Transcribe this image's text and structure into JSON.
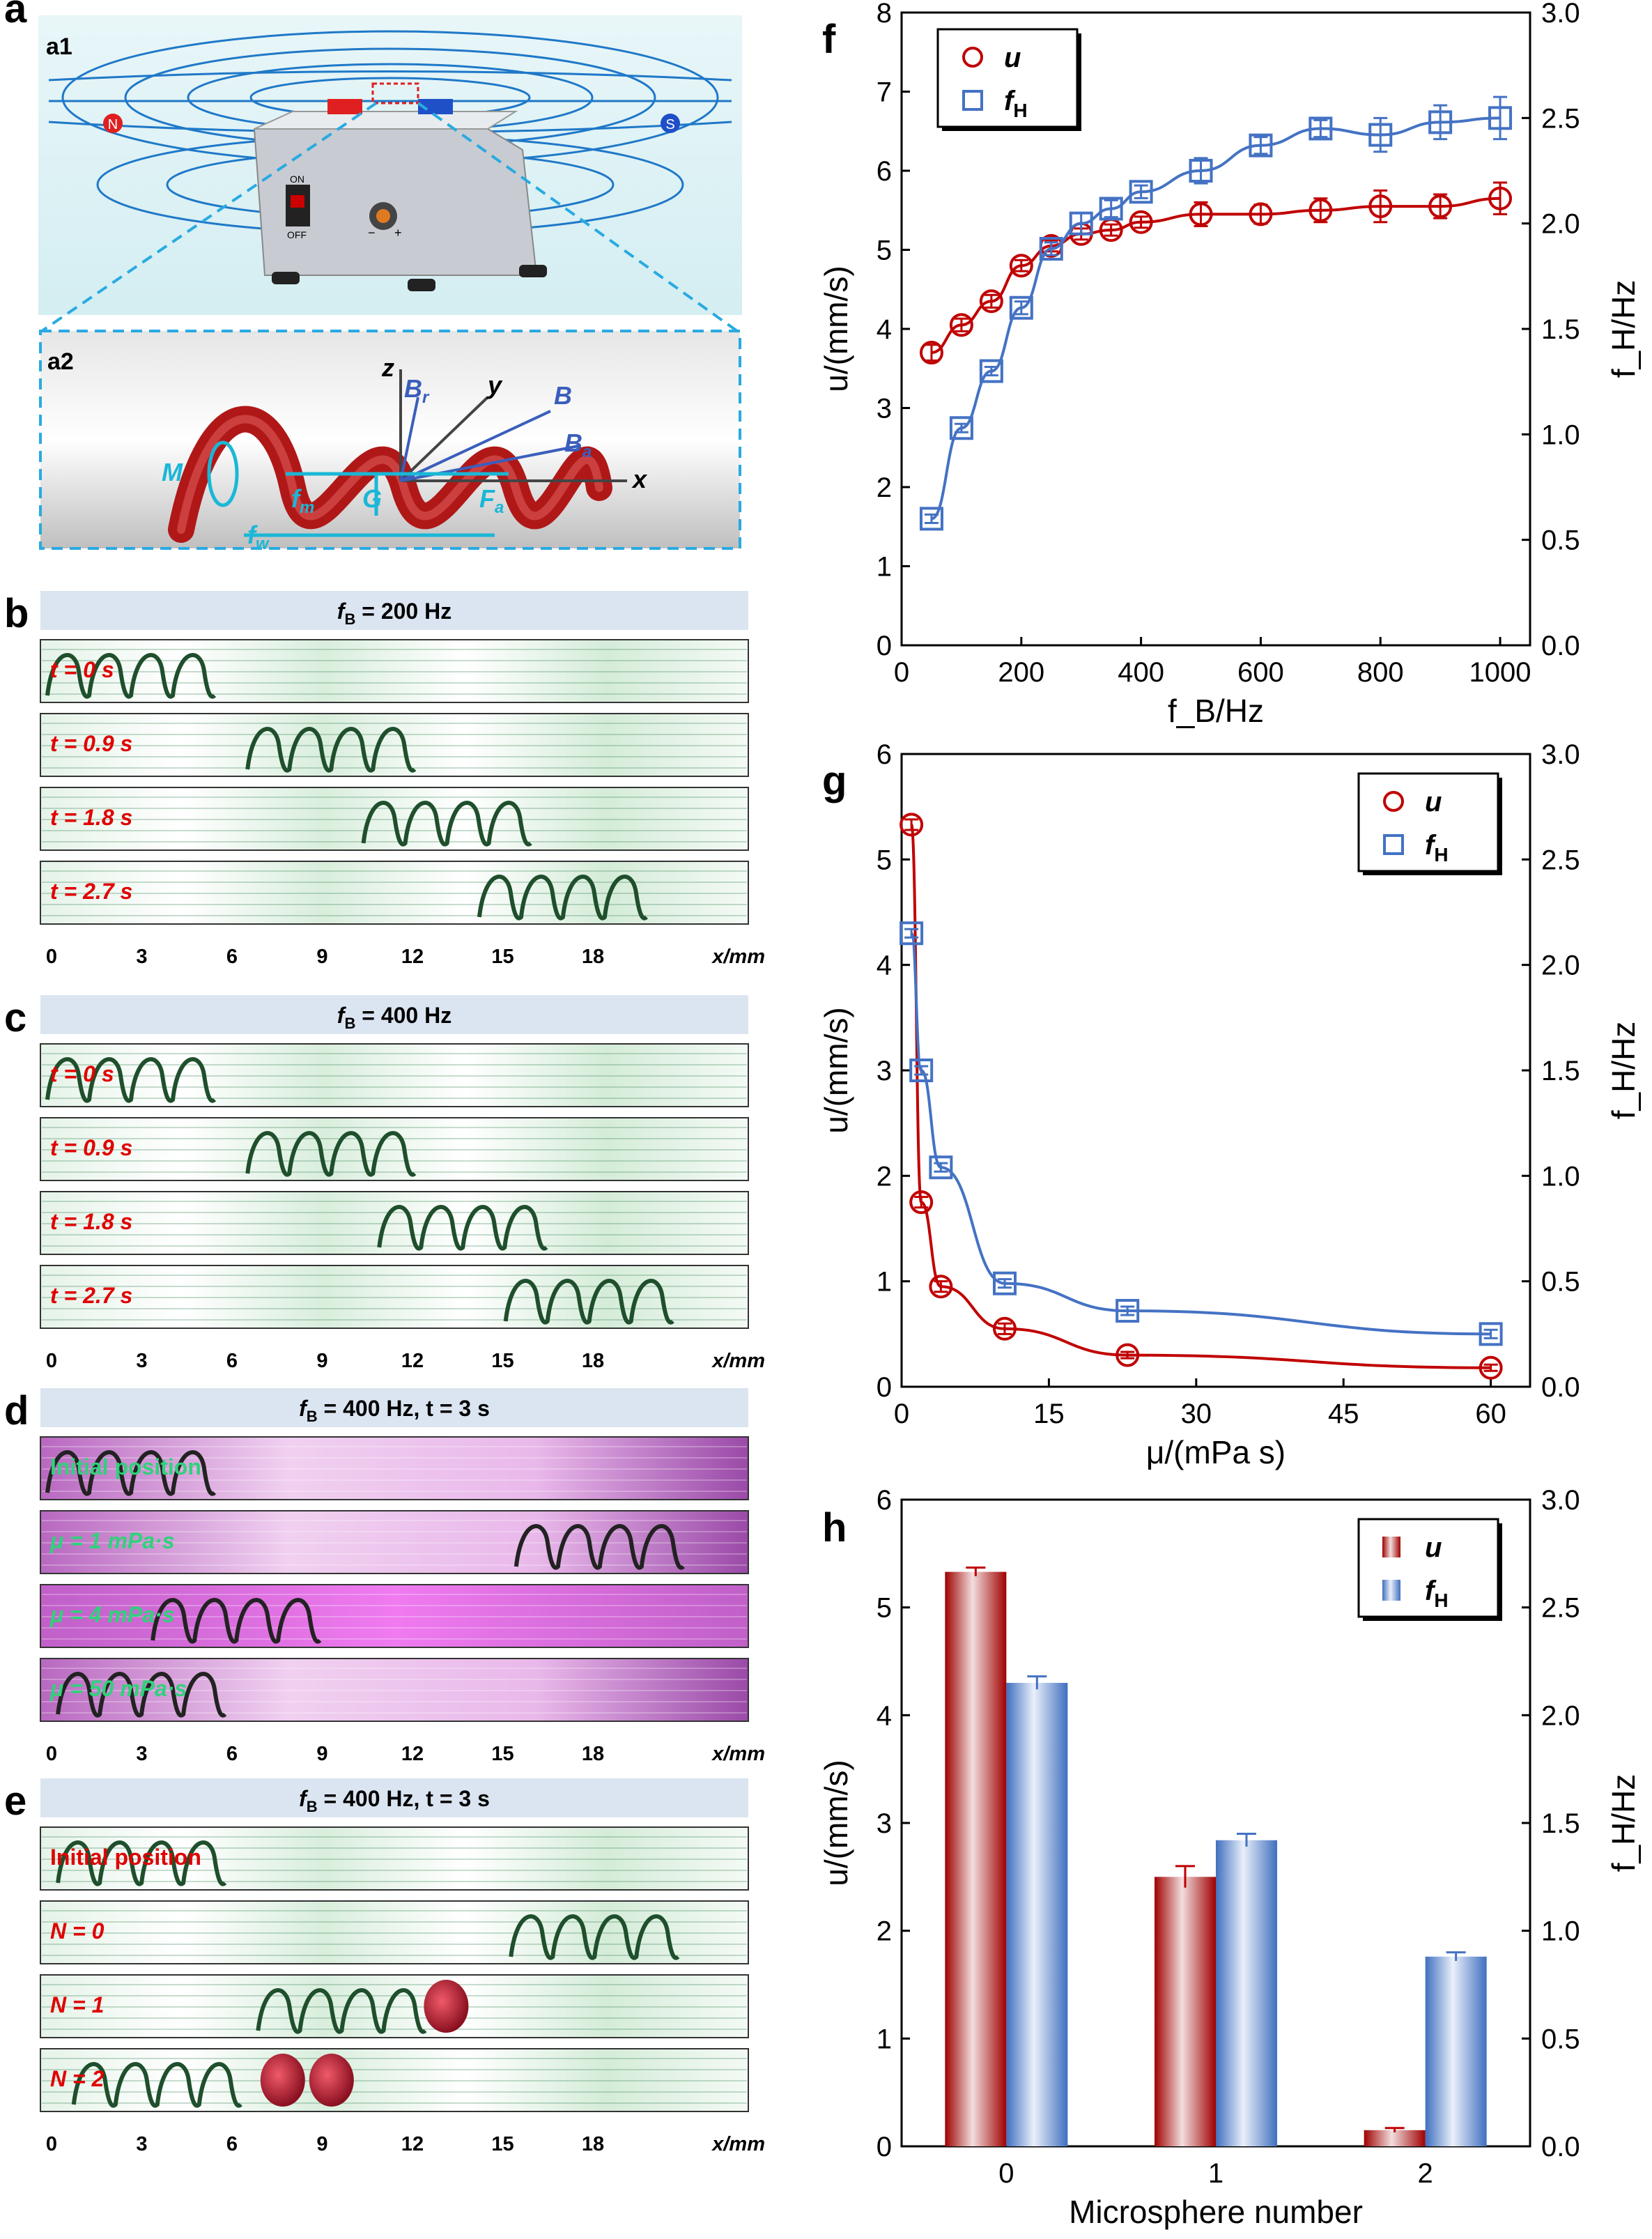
{
  "colors": {
    "red": "#c00000",
    "blue": "#4472c4",
    "strip_title_bg": "#dbe5f1",
    "pink": "#d88fd8",
    "cyan": "#1ab7d6"
  },
  "panels": {
    "a": {
      "letter": "a",
      "a1": {
        "label": "a1",
        "pole_n": "N",
        "pole_s": "S",
        "device_labels": [
          "ON",
          "OFF",
          "−",
          "+"
        ]
      },
      "a2": {
        "label": "a2",
        "axes": {
          "z": "z",
          "y": "y",
          "x": "x"
        },
        "vectors": {
          "Br": "B",
          "Br_sub": "r",
          "B": "B",
          "Ba": "B",
          "Ba_sub": "a",
          "Fa": "F",
          "Fa_sub": "a",
          "fm": "f",
          "fm_sub": "m",
          "fw": "f",
          "fw_sub": "w",
          "G": "G",
          "M": "M"
        }
      }
    },
    "b": {
      "letter": "b",
      "title": "f",
      "title_sub": "B",
      "title_rest": " = 200 Hz",
      "rows": [
        "t = 0 s",
        "t = 0.9 s",
        "t = 1.8 s",
        "t = 2.7 s"
      ],
      "ticks": [
        "0",
        "3",
        "6",
        "9",
        "12",
        "15",
        "18"
      ],
      "xlabel": "x/mm"
    },
    "c": {
      "letter": "c",
      "title": "f",
      "title_sub": "B",
      "title_rest": " = 400 Hz",
      "rows": [
        "t = 0 s",
        "t = 0.9 s",
        "t = 1.8 s",
        "t = 2.7 s"
      ],
      "ticks": [
        "0",
        "3",
        "6",
        "9",
        "12",
        "15",
        "18"
      ],
      "xlabel": "x/mm"
    },
    "d": {
      "letter": "d",
      "title": "f",
      "title_sub": "B",
      "title_rest": " = 400 Hz, t = 3 s",
      "rows": [
        "Initial position",
        "μ = 1 mPa·s",
        "μ = 4 mPa·s",
        "μ = 50 mPa·s"
      ],
      "ticks": [
        "0",
        "3",
        "6",
        "9",
        "12",
        "15",
        "18"
      ],
      "xlabel": "x/mm"
    },
    "e": {
      "letter": "e",
      "title": "f",
      "title_sub": "B",
      "title_rest": " = 400 Hz, t = 3 s",
      "rows": [
        "Initial position",
        "N = 0",
        "N = 1",
        "N = 2"
      ],
      "ticks": [
        "0",
        "3",
        "6",
        "9",
        "12",
        "15",
        "18"
      ],
      "xlabel": "x/mm"
    }
  },
  "chart_data": [
    {
      "id": "f",
      "type": "scatter",
      "xlabel": "f_B/Hz",
      "ylabel": "u/(mm/s)",
      "y2label": "f_H/Hz",
      "xlim": [
        0,
        1050
      ],
      "ylim": [
        0,
        8
      ],
      "y2lim": [
        0,
        3.0
      ],
      "xticks": [
        0,
        200,
        400,
        600,
        800,
        1000
      ],
      "yticks": [
        0,
        1,
        2,
        3,
        4,
        5,
        6,
        7,
        8
      ],
      "y2ticks": [
        "0.0",
        "0.5",
        "1.0",
        "1.5",
        "2.0",
        "2.5",
        "3.0"
      ],
      "legend": [
        {
          "symbol": "circle",
          "name": "u"
        },
        {
          "symbol": "square",
          "name": "f",
          "sub": "H"
        }
      ],
      "series": [
        {
          "name": "u",
          "axis": "left",
          "marker": "circle",
          "x": [
            50,
            100,
            150,
            200,
            250,
            300,
            350,
            400,
            500,
            600,
            700,
            800,
            900,
            1000
          ],
          "y": [
            3.7,
            4.05,
            4.35,
            4.8,
            5.05,
            5.2,
            5.25,
            5.35,
            5.45,
            5.45,
            5.5,
            5.55,
            5.55,
            5.65
          ],
          "err": [
            0.1,
            0.08,
            0.08,
            0.07,
            0.07,
            0.07,
            0.07,
            0.07,
            0.15,
            0.12,
            0.15,
            0.2,
            0.15,
            0.2
          ]
        },
        {
          "name": "f_H",
          "axis": "right",
          "marker": "square",
          "x": [
            50,
            100,
            150,
            200,
            250,
            300,
            350,
            400,
            500,
            600,
            700,
            800,
            900,
            1000
          ],
          "y": [
            0.6,
            1.03,
            1.3,
            1.6,
            1.88,
            2.0,
            2.07,
            2.15,
            2.25,
            2.37,
            2.45,
            2.42,
            2.48,
            2.5
          ],
          "err": [
            0.02,
            0.02,
            0.02,
            0.03,
            0.03,
            0.05,
            0.04,
            0.03,
            0.06,
            0.04,
            0.04,
            0.08,
            0.08,
            0.1
          ]
        }
      ]
    },
    {
      "id": "g",
      "type": "scatter",
      "xlabel": "μ/(mPa s)",
      "ylabel": "u/(mm/s)",
      "y2label": "f_H/Hz",
      "xlim": [
        0,
        64
      ],
      "ylim": [
        0,
        6
      ],
      "y2lim": [
        0,
        3.0
      ],
      "xticks": [
        0,
        15,
        30,
        45,
        60
      ],
      "yticks": [
        0,
        1,
        2,
        3,
        4,
        5,
        6
      ],
      "y2ticks": [
        "0.0",
        "0.5",
        "1.0",
        "1.5",
        "2.0",
        "2.5",
        "3.0"
      ],
      "legend": [
        {
          "symbol": "circle",
          "name": "u"
        },
        {
          "symbol": "square",
          "name": "f",
          "sub": "H"
        }
      ],
      "series": [
        {
          "name": "u",
          "axis": "left",
          "marker": "circle",
          "x": [
            1,
            2,
            4,
            10.5,
            23,
            60
          ],
          "y": [
            5.33,
            1.75,
            0.95,
            0.55,
            0.3,
            0.18
          ],
          "err": [
            0.05,
            0.05,
            0.05,
            0.05,
            0.03,
            0.03
          ]
        },
        {
          "name": "f_H",
          "axis": "right",
          "marker": "square",
          "x": [
            1,
            2,
            4,
            10.5,
            23,
            60
          ],
          "y": [
            2.15,
            1.5,
            1.04,
            0.49,
            0.36,
            0.25
          ],
          "err": [
            0.02,
            0.02,
            0.02,
            0.02,
            0.02,
            0.02
          ]
        }
      ]
    },
    {
      "id": "h",
      "type": "bar",
      "xlabel": "Microsphere number",
      "ylabel": "u/(mm/s)",
      "y2label": "f_H/Hz",
      "categories": [
        "0",
        "1",
        "2"
      ],
      "ylim": [
        0,
        6
      ],
      "y2lim": [
        0,
        3.0
      ],
      "yticks": [
        0,
        1,
        2,
        3,
        4,
        5,
        6
      ],
      "y2ticks": [
        "0.0",
        "0.5",
        "1.0",
        "1.5",
        "2.0",
        "2.5",
        "3.0"
      ],
      "legend": [
        {
          "symbol": "bar",
          "name": "u"
        },
        {
          "symbol": "bar",
          "name": "f",
          "sub": "H"
        }
      ],
      "series": [
        {
          "name": "u",
          "axis": "left",
          "values": [
            5.33,
            2.5,
            0.15
          ],
          "err": [
            0.04,
            0.1,
            0.02
          ]
        },
        {
          "name": "f_H",
          "axis": "right",
          "values": [
            2.15,
            1.42,
            0.88
          ],
          "err": [
            0.03,
            0.03,
            0.02
          ]
        }
      ]
    }
  ]
}
